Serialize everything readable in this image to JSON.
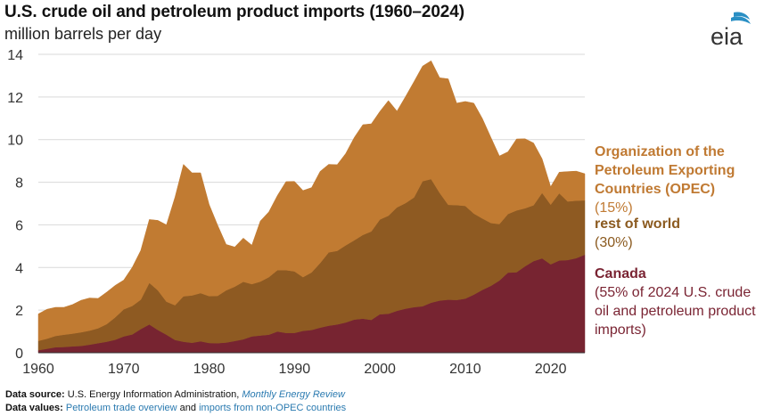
{
  "chart_data": {
    "type": "area",
    "stacked": true,
    "title": "U.S. crude oil and petroleum product imports (1960–2024)",
    "subtitle": "million barrels per day",
    "xlim": [
      1960,
      2024
    ],
    "ylim": [
      0,
      14
    ],
    "yticks": [
      "0",
      "2",
      "4",
      "6",
      "8",
      "10",
      "12",
      "14"
    ],
    "xticks": [
      "1960",
      "1970",
      "1980",
      "1990",
      "2000",
      "2010",
      "2020"
    ],
    "x": [
      1960,
      1961,
      1962,
      1963,
      1964,
      1965,
      1966,
      1967,
      1968,
      1969,
      1970,
      1971,
      1972,
      1973,
      1974,
      1975,
      1976,
      1977,
      1978,
      1979,
      1980,
      1981,
      1982,
      1983,
      1984,
      1985,
      1986,
      1987,
      1988,
      1989,
      1990,
      1991,
      1992,
      1993,
      1994,
      1995,
      1996,
      1997,
      1998,
      1999,
      2000,
      2001,
      2002,
      2003,
      2004,
      2005,
      2006,
      2007,
      2008,
      2009,
      2010,
      2011,
      2012,
      2013,
      2014,
      2015,
      2016,
      2017,
      2018,
      2019,
      2020,
      2021,
      2022,
      2023,
      2024
    ],
    "series": [
      {
        "name": "Canada",
        "color": "#772431",
        "values": [
          0.12,
          0.19,
          0.26,
          0.27,
          0.3,
          0.32,
          0.38,
          0.45,
          0.52,
          0.61,
          0.77,
          0.86,
          1.11,
          1.33,
          1.07,
          0.85,
          0.6,
          0.52,
          0.47,
          0.54,
          0.46,
          0.45,
          0.48,
          0.55,
          0.63,
          0.77,
          0.81,
          0.85,
          1.0,
          0.93,
          0.93,
          1.03,
          1.07,
          1.18,
          1.27,
          1.33,
          1.42,
          1.56,
          1.6,
          1.54,
          1.81,
          1.83,
          1.97,
          2.07,
          2.14,
          2.18,
          2.35,
          2.45,
          2.49,
          2.48,
          2.54,
          2.73,
          2.95,
          3.14,
          3.39,
          3.76,
          3.78,
          4.06,
          4.3,
          4.43,
          4.15,
          4.33,
          4.35,
          4.44,
          4.6
        ]
      },
      {
        "name": "rest of world",
        "color": "#8e5a22",
        "values": [
          0.44,
          0.47,
          0.53,
          0.58,
          0.6,
          0.64,
          0.66,
          0.7,
          0.82,
          1.05,
          1.27,
          1.34,
          1.38,
          1.95,
          1.86,
          1.55,
          1.63,
          2.13,
          2.22,
          2.26,
          2.2,
          2.22,
          2.45,
          2.55,
          2.7,
          2.45,
          2.53,
          2.7,
          2.88,
          2.95,
          2.89,
          2.52,
          2.7,
          3.03,
          3.44,
          3.45,
          3.62,
          3.72,
          3.93,
          4.15,
          4.44,
          4.6,
          4.85,
          4.95,
          5.15,
          5.87,
          5.8,
          5.05,
          4.45,
          4.45,
          4.35,
          3.8,
          3.35,
          2.95,
          2.65,
          2.75,
          2.9,
          2.72,
          2.62,
          3.07,
          2.8,
          3.15,
          2.75,
          2.7,
          2.55
        ]
      },
      {
        "name": "Organization of the Petroleum Exporting Countries (OPEC)",
        "color": "#c17b32",
        "values": [
          1.26,
          1.38,
          1.34,
          1.28,
          1.36,
          1.5,
          1.53,
          1.4,
          1.5,
          1.5,
          1.37,
          1.81,
          2.31,
          2.97,
          3.28,
          3.6,
          5.07,
          6.19,
          5.75,
          5.64,
          4.3,
          3.32,
          2.15,
          1.86,
          2.05,
          1.83,
          2.84,
          3.06,
          3.5,
          4.15,
          4.22,
          4.06,
          3.98,
          4.3,
          4.13,
          4.04,
          4.31,
          4.82,
          5.17,
          5.05,
          5.07,
          5.4,
          4.52,
          5.0,
          5.43,
          5.4,
          5.55,
          5.4,
          5.91,
          4.78,
          4.9,
          5.18,
          4.69,
          4.02,
          3.19,
          2.92,
          3.35,
          3.26,
          2.92,
          1.6,
          0.84,
          0.99,
          1.4,
          1.38,
          1.25
        ]
      }
    ],
    "legend_placement": "right"
  },
  "legend": {
    "opec_name": "Organization of the Petroleum Exporting Countries (OPEC)",
    "opec_share": "(15%)",
    "row_name": "rest of world",
    "row_share": "(30%)",
    "canada_name": "Canada",
    "canada_share": "(55% of 2024 U.S. crude oil and petroleum product imports)"
  },
  "logo_text": "eia",
  "footer": {
    "source_label": "Data source:",
    "source_text": "U.S. Energy Information Administration,",
    "source_link": "Monthly Energy Review",
    "values_label": "Data values:",
    "values_link1": "Petroleum trade overview",
    "values_and": "and",
    "values_link2": "imports from non-OPEC countries"
  }
}
